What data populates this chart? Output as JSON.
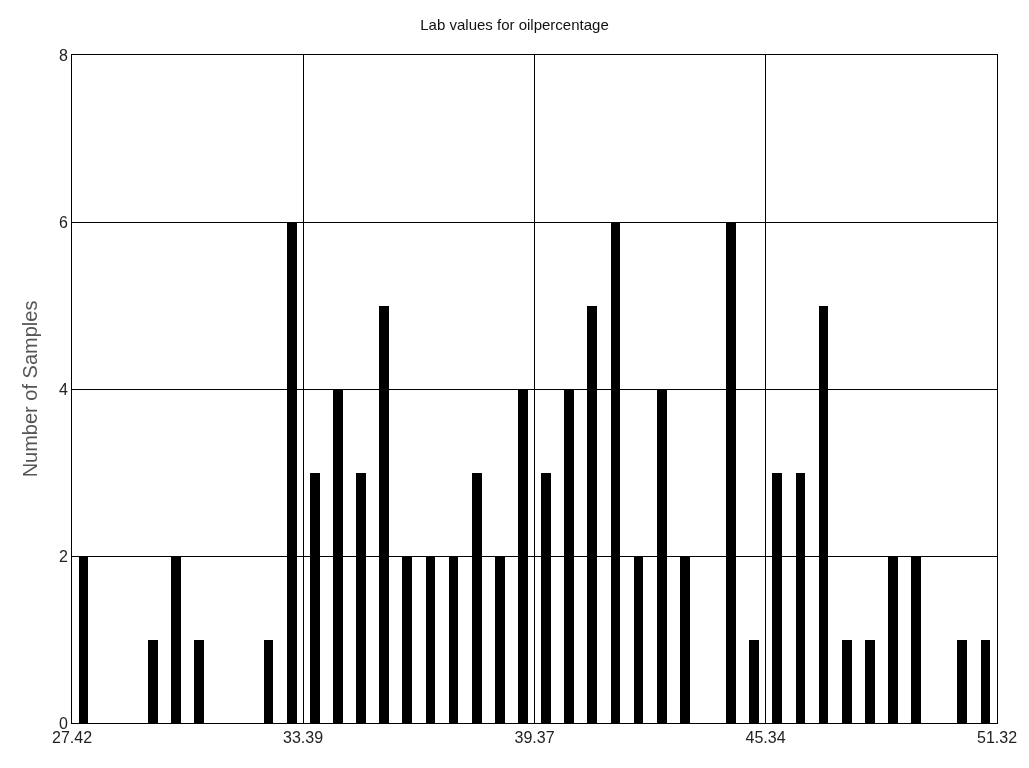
{
  "chart_data": {
    "type": "histogram",
    "title": "Lab values for oilpercentage",
    "ylabel": "Number of Samples",
    "bins": [
      27.42,
      28.0175,
      28.615,
      29.2125,
      29.81,
      30.4075,
      31.005,
      31.6025,
      32.2,
      32.7975,
      33.395,
      33.9925,
      34.59,
      35.1875,
      35.785,
      36.3825,
      36.98,
      37.5775,
      38.175,
      38.7725,
      39.37,
      39.9675,
      40.565,
      41.1625,
      41.76,
      42.3575,
      42.955,
      43.5525,
      44.15,
      44.7475,
      45.345,
      45.9425,
      46.54,
      47.1375,
      47.735,
      48.3325,
      48.93,
      49.5275,
      50.125,
      50.7225,
      51.32
    ],
    "values": [
      2,
      0,
      0,
      1,
      2,
      1,
      0,
      0,
      1,
      6,
      3,
      4,
      3,
      5,
      2,
      2,
      2,
      3,
      2,
      4,
      3,
      4,
      5,
      6,
      2,
      4,
      2,
      0,
      6,
      1,
      3,
      3,
      5,
      1,
      1,
      2,
      2,
      0,
      1,
      1
    ],
    "color": "#000000",
    "xlim": [
      27.42,
      51.32
    ],
    "xticks": [
      27.42,
      33.39,
      39.37,
      45.34,
      51.32
    ],
    "ylim": [
      0,
      8
    ],
    "yticks": [
      0,
      2,
      4,
      6,
      8
    ],
    "grid": true
  }
}
